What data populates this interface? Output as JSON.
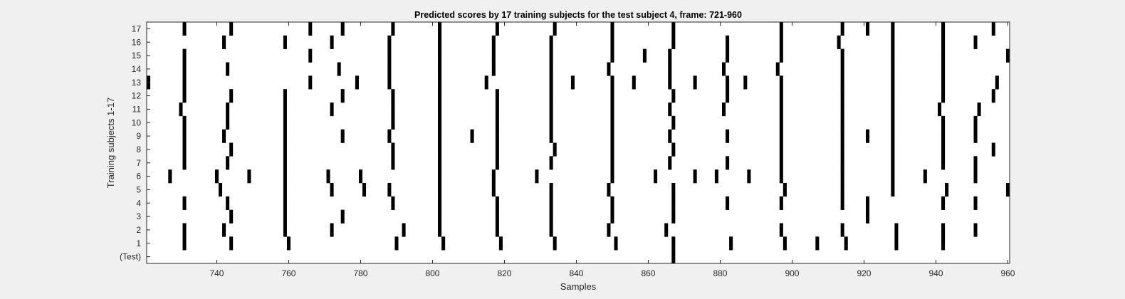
{
  "chart_data": {
    "type": "heatmap",
    "title": "Predicted scores by 17 training subjects for the test subject 4, frame: 721-960",
    "xlabel": "Samples",
    "ylabel": "Training subjects 1-17",
    "xlim": [
      721,
      960
    ],
    "x_ticks": [
      740,
      760,
      780,
      800,
      820,
      840,
      860,
      880,
      900,
      920,
      940,
      960
    ],
    "row_labels": [
      "(Test)",
      "1",
      "2",
      "3",
      "4",
      "5",
      "6",
      "7",
      "8",
      "9",
      "10",
      "11",
      "12",
      "13",
      "14",
      "15",
      "16",
      "17"
    ],
    "grid": false,
    "colors": {
      "background": "#ffffff",
      "mark": "#000000",
      "figure": "#f0f0f0"
    },
    "rows": [
      {
        "label": "(Test)",
        "x": [
          867
        ]
      },
      {
        "label": "1",
        "x": [
          731,
          744,
          760,
          790,
          803,
          819,
          834,
          851,
          867,
          883,
          898,
          907,
          915,
          929,
          942
        ]
      },
      {
        "label": "2",
        "x": [
          731,
          742,
          759,
          772,
          792,
          802,
          818,
          833,
          849,
          865,
          897,
          914,
          929,
          942,
          951
        ]
      },
      {
        "label": "3",
        "x": [
          744,
          759,
          775,
          802,
          818,
          833,
          850,
          867,
          921
        ]
      },
      {
        "label": "4",
        "x": [
          731,
          743,
          759,
          789,
          802,
          818,
          833,
          850,
          867,
          882,
          897,
          914,
          921,
          942,
          951
        ]
      },
      {
        "label": "5",
        "x": [
          741,
          759,
          772,
          781,
          788,
          802,
          817,
          833,
          849,
          867,
          898,
          914,
          928,
          943,
          960
        ]
      },
      {
        "label": "6",
        "x": [
          727,
          740,
          749,
          759,
          771,
          780,
          802,
          817,
          829,
          850,
          862,
          873,
          879,
          888,
          897,
          914,
          928,
          937,
          951
        ]
      },
      {
        "label": "7",
        "x": [
          731,
          743,
          759,
          789,
          802,
          818,
          833,
          850,
          866,
          882,
          897,
          914,
          928,
          942,
          951
        ]
      },
      {
        "label": "8",
        "x": [
          731,
          744,
          759,
          789,
          802,
          818,
          834,
          850,
          867,
          897,
          914,
          928,
          942,
          956
        ]
      },
      {
        "label": "9",
        "x": [
          731,
          742,
          759,
          775,
          788,
          802,
          811,
          818,
          833,
          850,
          866,
          882,
          897,
          914,
          921,
          928,
          942,
          951
        ]
      },
      {
        "label": "10",
        "x": [
          731,
          743,
          759,
          789,
          802,
          818,
          833,
          850,
          867,
          897,
          914,
          928,
          942,
          951
        ]
      },
      {
        "label": "11",
        "x": [
          730,
          743,
          759,
          772,
          789,
          802,
          818,
          833,
          850,
          866,
          881,
          897,
          914,
          928,
          941,
          952
        ]
      },
      {
        "label": "12",
        "x": [
          731,
          744,
          759,
          775,
          789,
          802,
          818,
          833,
          850,
          867,
          882,
          897,
          914,
          928,
          942,
          956
        ]
      },
      {
        "label": "13",
        "x": [
          721,
          731,
          766,
          779,
          788,
          802,
          815,
          833,
          839,
          850,
          856,
          866,
          873,
          882,
          887,
          897,
          914,
          928,
          942,
          957
        ]
      },
      {
        "label": "14",
        "x": [
          731,
          743,
          774,
          788,
          802,
          817,
          833,
          849,
          866,
          881,
          896,
          914,
          928,
          942
        ]
      },
      {
        "label": "15",
        "x": [
          731,
          766,
          788,
          802,
          817,
          833,
          850,
          859,
          866,
          882,
          897,
          914,
          928,
          942,
          960
        ]
      },
      {
        "label": "16",
        "x": [
          742,
          759,
          772,
          788,
          802,
          817,
          833,
          850,
          867,
          882,
          897,
          913,
          928,
          942,
          951
        ]
      },
      {
        "label": "17",
        "x": [
          731,
          744,
          766,
          775,
          789,
          802,
          818,
          834,
          850,
          867,
          897,
          914,
          921,
          928,
          942,
          956
        ]
      }
    ]
  }
}
